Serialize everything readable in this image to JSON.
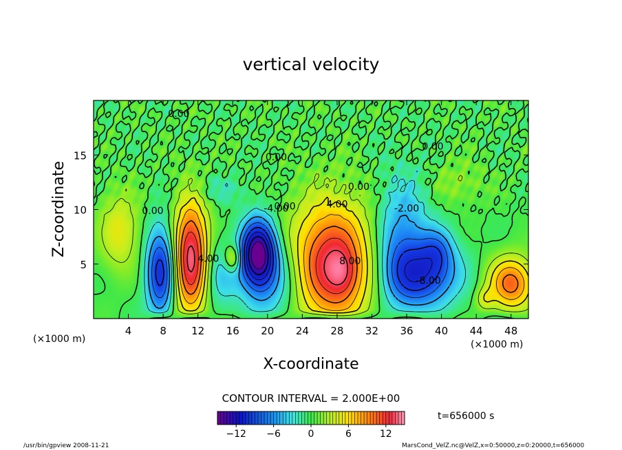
{
  "chart_data": {
    "type": "heatmap",
    "title": "vertical velocity",
    "xlabel": "X-coordinate",
    "ylabel": "Z-coordinate",
    "x_unit_left": "(×1000 m)",
    "x_unit_right": "(×1000 m)",
    "xlim": [
      0,
      50
    ],
    "ylim": [
      0,
      20
    ],
    "x_ticks": [
      4,
      8,
      12,
      16,
      20,
      24,
      28,
      32,
      36,
      40,
      44,
      48
    ],
    "y_ticks": [
      5,
      10,
      15
    ],
    "contour_interval_text": "CONTOUR INTERVAL = 2.000E+00",
    "time_text": "t=656000 s",
    "colorbar": {
      "min": -15,
      "max": 15,
      "ticks": [
        -12,
        -6,
        0,
        6,
        12
      ]
    },
    "contour_labels": [
      {
        "x": 9.8,
        "y": 18.5,
        "text": "0.00"
      },
      {
        "x": 21.0,
        "y": 14.5,
        "text": "0.00"
      },
      {
        "x": 39.0,
        "y": 15.5,
        "text": "0.00"
      },
      {
        "x": 6.8,
        "y": 9.6,
        "text": "0.00"
      },
      {
        "x": 22.0,
        "y": 10.0,
        "text": "0.00"
      },
      {
        "x": 30.5,
        "y": 11.8,
        "text": "0.00"
      },
      {
        "x": 21.0,
        "y": 9.8,
        "text": "-4.00"
      },
      {
        "x": 28.0,
        "y": 10.2,
        "text": "4.00"
      },
      {
        "x": 36.0,
        "y": 9.8,
        "text": "-2.00"
      },
      {
        "x": 13.2,
        "y": 5.2,
        "text": "4.00"
      },
      {
        "x": 29.5,
        "y": 5.0,
        "text": "8.00"
      },
      {
        "x": 38.5,
        "y": 3.2,
        "text": "-8.00"
      }
    ],
    "blobs": [
      {
        "cx": 3.0,
        "cy": 8.0,
        "rx": 2.2,
        "ry": 3.4,
        "amp": 4
      },
      {
        "cx": 7.7,
        "cy": 4.3,
        "rx": 1.6,
        "ry": 4.0,
        "amp": -9
      },
      {
        "cx": 11.2,
        "cy": 5.6,
        "rx": 1.9,
        "ry": 5.0,
        "amp": 13
      },
      {
        "cx": 14.5,
        "cy": 4.0,
        "rx": 2.2,
        "ry": 3.0,
        "amp": -3
      },
      {
        "cx": 16.0,
        "cy": 5.5,
        "rx": 1.0,
        "ry": 1.2,
        "amp": 5
      },
      {
        "cx": 18.9,
        "cy": 5.9,
        "rx": 1.9,
        "ry": 2.9,
        "amp": -15
      },
      {
        "cx": 21.0,
        "cy": 3.5,
        "rx": 3.5,
        "ry": 4.0,
        "amp": -4
      },
      {
        "cx": 27.3,
        "cy": 5.0,
        "rx": 4.5,
        "ry": 5.4,
        "amp": 12
      },
      {
        "cx": 28.6,
        "cy": 4.2,
        "rx": 1.6,
        "ry": 2.0,
        "amp": 3
      },
      {
        "cx": 35.5,
        "cy": 7.0,
        "rx": 3.0,
        "ry": 5.5,
        "amp": -5
      },
      {
        "cx": 37.8,
        "cy": 4.0,
        "rx": 4.0,
        "ry": 2.8,
        "amp": -8
      },
      {
        "cx": 39.5,
        "cy": 6.2,
        "rx": 1.8,
        "ry": 2.0,
        "amp": -4
      },
      {
        "cx": 48.0,
        "cy": 3.2,
        "rx": 2.5,
        "ry": 2.3,
        "amp": 9
      },
      {
        "cx": 45.0,
        "cy": 1.8,
        "rx": 1.0,
        "ry": 1.0,
        "amp": 3
      },
      {
        "cx": 14.0,
        "cy": 11.8,
        "rx": 3.0,
        "ry": 1.3,
        "amp": -1.5
      },
      {
        "cx": 42.0,
        "cy": 12.5,
        "rx": 3.0,
        "ry": 2.0,
        "amp": 1.5
      }
    ]
  },
  "footer": {
    "left": "/usr/bin/gpview   2008-11-21",
    "right": "MarsCond_VelZ.nc@VelZ,x=0:50000,z=0:20000,t=656000"
  }
}
